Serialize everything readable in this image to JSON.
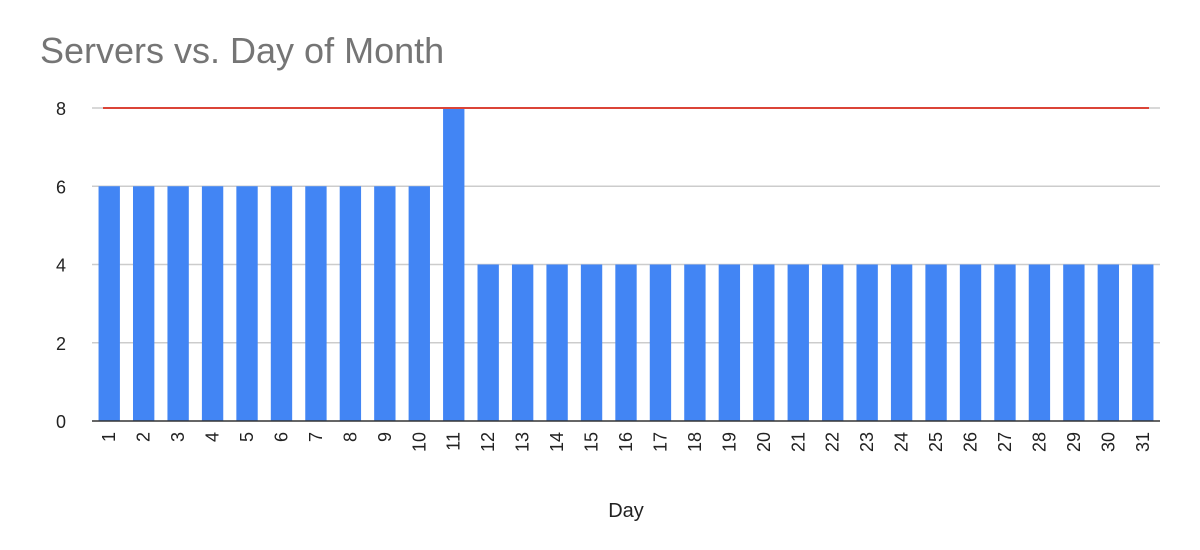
{
  "chart_data": {
    "type": "bar",
    "title": "Servers vs. Day of Month",
    "xlabel": "Day",
    "ylabel": "",
    "ylim": [
      0,
      8
    ],
    "yticks": [
      0,
      2,
      4,
      6,
      8
    ],
    "grid": true,
    "categories": [
      "1",
      "2",
      "3",
      "4",
      "5",
      "6",
      "7",
      "8",
      "9",
      "10",
      "11",
      "12",
      "13",
      "14",
      "15",
      "16",
      "17",
      "18",
      "19",
      "20",
      "21",
      "22",
      "23",
      "24",
      "25",
      "26",
      "27",
      "28",
      "29",
      "30",
      "31"
    ],
    "values": [
      6,
      6,
      6,
      6,
      6,
      6,
      6,
      6,
      6,
      6,
      8,
      4,
      4,
      4,
      4,
      4,
      4,
      4,
      4,
      4,
      4,
      4,
      4,
      4,
      4,
      4,
      4,
      4,
      4,
      4,
      4
    ],
    "reference_line": {
      "value": 8
    },
    "colors": {
      "bar": "#4285f4",
      "reference_line": "#db4437",
      "grid": "#cccccc",
      "axis": "#333333",
      "title": "#757575"
    }
  }
}
